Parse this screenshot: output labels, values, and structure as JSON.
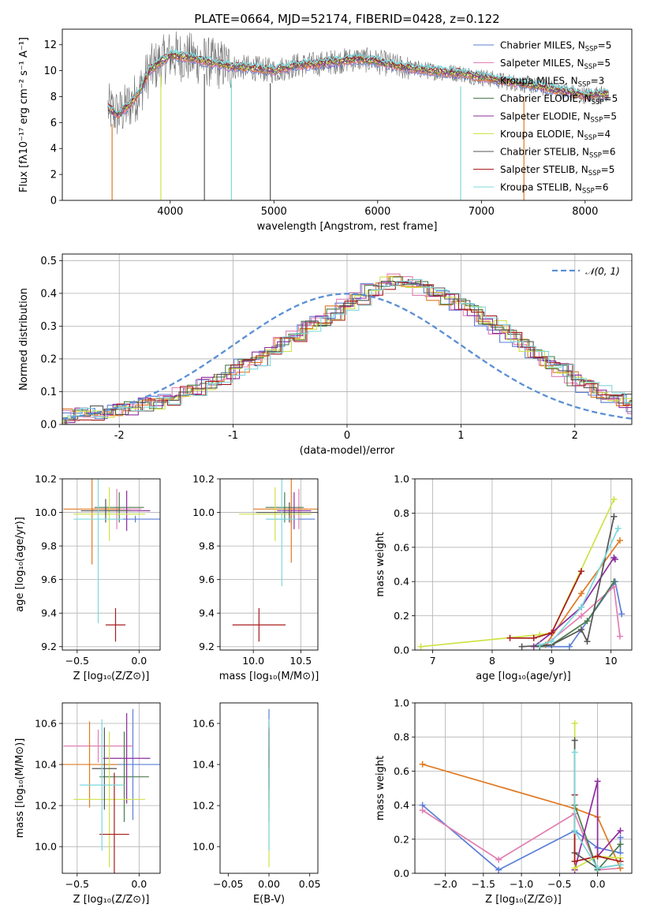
{
  "figure": {
    "title": "PLATE=0664, MJD=52174, FIBERID=0428, z=0.122"
  },
  "colors": {
    "Chabrier MILES": "#5b7fd6",
    "Salpeter MILES": "#e07fb2",
    "Kroupa MILES": "#e07a22",
    "Chabrier ELODIE": "#4a7b4f",
    "Salpeter ELODIE": "#8e2c9e",
    "Kroupa ELODIE": "#cfe246",
    "Chabrier STELIB": "#555555",
    "Salpeter STELIB": "#a81b1b",
    "Kroupa STELIB": "#7dd8dc",
    "normal_fit": "#5b8fd6",
    "grid": "#b0b0b0"
  },
  "chart_data": [
    {
      "id": "spectrum",
      "type": "line",
      "title": "PLATE=0664, MJD=52174, FIBERID=0428, z=0.122",
      "xlabel": "wavelength [Angstrom, rest frame]",
      "ylabel": "Flux [fλ10⁻¹⁷ erg cm⁻² s⁻¹ A⁻¹]",
      "xlim": [
        2960,
        8450
      ],
      "ylim": [
        0,
        13.2
      ],
      "xticks": [
        4000,
        5000,
        6000,
        7000,
        8000
      ],
      "yticks": [
        0,
        2,
        4,
        6,
        8,
        10,
        12
      ],
      "grid": false,
      "legend_position": "top-right",
      "data_envelope": {
        "x": [
          3400,
          3500,
          3600,
          3700,
          3800,
          3900,
          4000,
          4200,
          4400,
          4600,
          4800,
          5000,
          5200,
          5400,
          5600,
          5800,
          6000,
          6200,
          6400,
          6600,
          6800,
          7000,
          7200,
          7400,
          7600,
          7800,
          8000,
          8200
        ],
        "y": [
          7.1,
          6.6,
          7.3,
          8.3,
          10.0,
          10.6,
          11.2,
          11.0,
          10.6,
          10.3,
          10.2,
          10.0,
          10.4,
          10.5,
          10.7,
          10.9,
          10.7,
          10.3,
          10.1,
          9.9,
          9.8,
          9.5,
          9.2,
          9.0,
          8.7,
          8.4,
          8.1,
          8.2
        ]
      },
      "series": [
        {
          "name": "Chabrier MILES, N_SSP=5",
          "label_main": "Chabrier MILES, N",
          "label_sub": "SSP",
          "label_tail": "=5"
        },
        {
          "name": "Salpeter MILES, N_SSP=5",
          "label_main": "Salpeter MILES, N",
          "label_sub": "SSP",
          "label_tail": "=5"
        },
        {
          "name": "Kroupa MILES, N_SSP=3",
          "label_main": "Kroupa MILES, N",
          "label_sub": "SSP",
          "label_tail": "=3"
        },
        {
          "name": "Chabrier ELODIE, N_SSP=5",
          "label_main": "Chabrier ELODIE, N",
          "label_sub": "SSP",
          "label_tail": "=5"
        },
        {
          "name": "Salpeter ELODIE, N_SSP=5",
          "label_main": "Salpeter ELODIE, N",
          "label_sub": "SSP",
          "label_tail": "=5"
        },
        {
          "name": "Kroupa ELODIE, N_SSP=4",
          "label_main": "Kroupa ELODIE, N",
          "label_sub": "SSP",
          "label_tail": "=4"
        },
        {
          "name": "Chabrier STELIB, N_SSP=6",
          "label_main": "Chabrier STELIB, N",
          "label_sub": "SSP",
          "label_tail": "=6"
        },
        {
          "name": "Salpeter STELIB, N_SSP=5",
          "label_main": "Salpeter STELIB, N",
          "label_sub": "SSP",
          "label_tail": "=5"
        },
        {
          "name": "Kroupa STELIB, N_SSP=6",
          "label_main": "Kroupa STELIB, N",
          "label_sub": "SSP",
          "label_tail": "=6"
        }
      ]
    },
    {
      "id": "residuals",
      "type": "histogram",
      "xlabel": "(data-model)/error",
      "ylabel": "Normed distribution",
      "xlim": [
        -2.5,
        2.5
      ],
      "ylim": [
        0,
        0.52
      ],
      "xticks": [
        -2,
        -1,
        0,
        1,
        2
      ],
      "yticks": [
        0.0,
        0.1,
        0.2,
        0.3,
        0.4,
        0.5
      ],
      "grid": true,
      "legend_position": "top-right",
      "bin_width": 0.1111,
      "bin_start": -2.5,
      "bin_heights": [
        0.027,
        0.03,
        0.034,
        0.038,
        0.044,
        0.05,
        0.058,
        0.068,
        0.08,
        0.094,
        0.108,
        0.124,
        0.142,
        0.16,
        0.18,
        0.2,
        0.22,
        0.245,
        0.27,
        0.295,
        0.32,
        0.34,
        0.36,
        0.385,
        0.41,
        0.43,
        0.445,
        0.43,
        0.415,
        0.4,
        0.385,
        0.365,
        0.345,
        0.32,
        0.295,
        0.268,
        0.24,
        0.215,
        0.19,
        0.165,
        0.14,
        0.12,
        0.1,
        0.085,
        0.07,
        0.055,
        0.042
      ],
      "normal_label": "𝒩(0, 1)"
    },
    {
      "id": "age_vs_Z",
      "type": "errorbar",
      "xlabel": "Z [log₁₀(Z/Z⊙)]",
      "ylabel": "age  [log₁₀(age/yr)]",
      "xlim": [
        -0.62,
        0.17
      ],
      "ylim": [
        9.18,
        10.2
      ],
      "xticks": [
        -0.5,
        0.0
      ],
      "yticks": [
        9.2,
        9.4,
        9.6,
        9.8,
        10.0,
        10.2
      ],
      "grid": true,
      "points": [
        {
          "s": "Chabrier MILES",
          "x": -0.03,
          "xerr": 0.2,
          "y": 9.96,
          "yerr": 0.02
        },
        {
          "s": "Salpeter MILES",
          "x": -0.18,
          "xerr": 0.2,
          "y": 10.02,
          "yerr": 0.12
        },
        {
          "s": "Kroupa MILES",
          "x": -0.38,
          "xerr": 0.23,
          "y": 10.02,
          "yerr": 0.33
        },
        {
          "s": "Chabrier ELODIE",
          "x": -0.16,
          "xerr": 0.2,
          "y": 10.03,
          "yerr": 0.09
        },
        {
          "s": "Salpeter ELODIE",
          "x": -0.1,
          "xerr": 0.19,
          "y": 10.01,
          "yerr": 0.12
        },
        {
          "s": "Kroupa ELODIE",
          "x": -0.24,
          "xerr": 0.29,
          "y": 9.99,
          "yerr": 0.16
        },
        {
          "s": "Chabrier STELIB",
          "x": -0.27,
          "xerr": 0.2,
          "y": 10.01,
          "yerr": 0.07
        },
        {
          "s": "Salpeter STELIB",
          "x": -0.19,
          "xerr": 0.08,
          "y": 9.33,
          "yerr": 0.1
        },
        {
          "s": "Kroupa STELIB",
          "x": -0.33,
          "xerr": 0.2,
          "y": 9.96,
          "yerr": 0.62
        }
      ]
    },
    {
      "id": "age_vs_mass",
      "type": "errorbar",
      "xlabel": "mass [log₁₀(M/M⊙)]",
      "ylabel": "",
      "xlim": [
        9.65,
        10.68
      ],
      "ylim": [
        9.18,
        10.2
      ],
      "xticks": [
        10.0,
        10.5
      ],
      "yticks": [
        9.2,
        9.4,
        9.6,
        9.8,
        10.0,
        10.2
      ],
      "grid": true,
      "points": [
        {
          "s": "Chabrier MILES",
          "x": 10.4,
          "xerr": 0.25,
          "y": 9.96,
          "yerr": 0.03
        },
        {
          "s": "Salpeter MILES",
          "x": 10.48,
          "xerr": 0.08,
          "y": 10.02,
          "yerr": 0.12
        },
        {
          "s": "Kroupa MILES",
          "x": 10.4,
          "xerr": 0.4,
          "y": 10.02,
          "yerr": 0.32
        },
        {
          "s": "Chabrier ELODIE",
          "x": 10.33,
          "xerr": 0.2,
          "y": 10.03,
          "yerr": 0.09
        },
        {
          "s": "Salpeter ELODIE",
          "x": 10.43,
          "xerr": 0.18,
          "y": 10.01,
          "yerr": 0.11
        },
        {
          "s": "Kroupa ELODIE",
          "x": 10.23,
          "xerr": 0.38,
          "y": 9.99,
          "yerr": 0.16
        },
        {
          "s": "Chabrier STELIB",
          "x": 10.38,
          "xerr": 0.35,
          "y": 10.0,
          "yerr": 0.06
        },
        {
          "s": "Salpeter STELIB",
          "x": 10.06,
          "xerr": 0.28,
          "y": 9.33,
          "yerr": 0.1
        },
        {
          "s": "Kroupa STELIB",
          "x": 10.3,
          "xerr": 0.17,
          "y": 9.96,
          "yerr": 0.4
        }
      ]
    },
    {
      "id": "weight_vs_age",
      "type": "line",
      "xlabel": "age  [log₁₀(age/yr)]",
      "ylabel": "mass weight",
      "xlim": [
        6.7,
        10.35
      ],
      "ylim": [
        0.0,
        1.0
      ],
      "xticks": [
        7,
        8,
        9,
        10
      ],
      "yticks": [
        0.0,
        0.2,
        0.4,
        0.6,
        0.8,
        1.0
      ],
      "grid": true,
      "series": [
        {
          "s": "Chabrier MILES",
          "x": [
            8.8,
            9.3,
            10.07,
            10.18
          ],
          "y": [
            0.02,
            0.02,
            0.4,
            0.21
          ]
        },
        {
          "s": "Salpeter MILES",
          "x": [
            8.9,
            9.5,
            10.05,
            10.15
          ],
          "y": [
            0.03,
            0.2,
            0.37,
            0.08
          ]
        },
        {
          "s": "Kroupa MILES",
          "x": [
            8.9,
            9.5,
            10.15
          ],
          "y": [
            0.03,
            0.33,
            0.64
          ]
        },
        {
          "s": "Chabrier ELODIE",
          "x": [
            8.8,
            9.0,
            9.6,
            10.05
          ],
          "y": [
            0.02,
            0.03,
            0.17,
            0.4
          ]
        },
        {
          "s": "Salpeter ELODIE",
          "x": [
            8.7,
            9.0,
            9.5,
            10.05,
            10.07
          ],
          "y": [
            0.02,
            0.1,
            0.25,
            0.54,
            0.53
          ]
        },
        {
          "s": "Kroupa ELODIE",
          "x": [
            6.8,
            8.8,
            9.0,
            10.05
          ],
          "y": [
            0.02,
            0.09,
            0.1,
            0.88
          ]
        },
        {
          "s": "Chabrier STELIB",
          "x": [
            8.5,
            9.0,
            9.5,
            9.6,
            10.05
          ],
          "y": [
            0.02,
            0.03,
            0.12,
            0.05,
            0.78
          ]
        },
        {
          "s": "Salpeter STELIB",
          "x": [
            8.3,
            8.7,
            9.0,
            9.5
          ],
          "y": [
            0.07,
            0.07,
            0.1,
            0.46
          ]
        },
        {
          "s": "Kroupa STELIB",
          "x": [
            8.8,
            9.0,
            9.5,
            10.12
          ],
          "y": [
            0.03,
            0.05,
            0.25,
            0.71
          ]
        }
      ]
    },
    {
      "id": "mass_vs_Z",
      "type": "errorbar",
      "xlabel": "Z [log₁₀(Z/Z⊙)]",
      "ylabel": "mass [log₁₀(M/M⊙)]",
      "xlim": [
        -0.62,
        0.17
      ],
      "ylim": [
        9.87,
        10.7
      ],
      "xticks": [
        -0.5,
        0.0
      ],
      "yticks": [
        10.0,
        10.2,
        10.4,
        10.6
      ],
      "grid": true,
      "points": [
        {
          "s": "Chabrier MILES",
          "x": -0.05,
          "xerr": 0.25,
          "y": 10.4,
          "yerr": 0.27
        },
        {
          "s": "Salpeter MILES",
          "x": -0.33,
          "xerr": 0.28,
          "y": 10.49,
          "yerr": 0.08
        },
        {
          "s": "Kroupa MILES",
          "x": -0.4,
          "xerr": 0.23,
          "y": 10.4,
          "yerr": 0.21
        },
        {
          "s": "Chabrier ELODIE",
          "x": -0.12,
          "xerr": 0.2,
          "y": 10.34,
          "yerr": 0.22
        },
        {
          "s": "Salpeter ELODIE",
          "x": -0.1,
          "xerr": 0.19,
          "y": 10.43,
          "yerr": 0.22
        },
        {
          "s": "Kroupa ELODIE",
          "x": -0.24,
          "xerr": 0.29,
          "y": 10.23,
          "yerr": 0.33
        },
        {
          "s": "Chabrier STELIB",
          "x": -0.28,
          "xerr": 0.1,
          "y": 10.38,
          "yerr": 0.2
        },
        {
          "s": "Salpeter STELIB",
          "x": -0.2,
          "xerr": 0.12,
          "y": 10.06,
          "yerr": 0.3
        },
        {
          "s": "Kroupa STELIB",
          "x": -0.3,
          "xerr": 0.18,
          "y": 10.3,
          "yerr": 0.32
        }
      ]
    },
    {
      "id": "mass_vs_EBV",
      "type": "errorbar",
      "xlabel": "E(B-V)",
      "ylabel": "",
      "xlim": [
        -0.06,
        0.06
      ],
      "ylim": [
        9.87,
        10.7
      ],
      "xticks": [
        -0.05,
        0.0,
        0.05
      ],
      "xticklabels": [
        "−0.05",
        "0.00",
        "0.05"
      ],
      "yticks": [
        10.0,
        10.2,
        10.4,
        10.6
      ],
      "grid": false,
      "points": [
        {
          "s": "Chabrier MILES",
          "x": 0.0,
          "xerr": 0.0,
          "y": 10.45,
          "yerr": 0.22
        },
        {
          "s": "Salpeter MILES",
          "x": 0.0,
          "xerr": 0.0,
          "y": 10.49,
          "yerr": 0.08
        },
        {
          "s": "Kroupa MILES",
          "x": 0.0,
          "xerr": 0.0,
          "y": 10.4,
          "yerr": 0.21
        },
        {
          "s": "Chabrier ELODIE",
          "x": 0.0,
          "xerr": 0.0,
          "y": 10.34,
          "yerr": 0.22
        },
        {
          "s": "Salpeter ELODIE",
          "x": 0.0,
          "xerr": 0.0,
          "y": 10.5,
          "yerr": 0.08
        },
        {
          "s": "Kroupa ELODIE",
          "x": 0.0,
          "xerr": 0.0,
          "y": 10.23,
          "yerr": 0.33
        },
        {
          "s": "Chabrier STELIB",
          "x": 0.0,
          "xerr": 0.0,
          "y": 10.38,
          "yerr": 0.1
        },
        {
          "s": "Salpeter STELIB",
          "x": 0.0,
          "xerr": 0.0,
          "y": 10.48,
          "yerr": 0.1
        },
        {
          "s": "Kroupa STELIB",
          "x": 0.0,
          "xerr": 0.0,
          "y": 10.3,
          "yerr": 0.32
        }
      ]
    },
    {
      "id": "weight_vs_Z",
      "type": "line",
      "xlabel": "Z [log₁₀(Z/Z⊙)]",
      "ylabel": "mass weight",
      "xlim": [
        -2.4,
        0.45
      ],
      "ylim": [
        0.0,
        1.0
      ],
      "xticks": [
        -2.0,
        -1.5,
        -1.0,
        -0.5,
        0.0
      ],
      "xticklabels": [
        "−2.0",
        "−1.5",
        "−1.0",
        "−0.5",
        "0.0"
      ],
      "yticks": [
        0.0,
        0.2,
        0.4,
        0.6,
        0.8,
        1.0
      ],
      "grid": true,
      "series": [
        {
          "s": "Chabrier MILES",
          "x": [
            -2.3,
            -1.3,
            -0.3,
            0.0,
            0.3,
            0.3
          ],
          "y": [
            0.4,
            0.02,
            0.25,
            0.15,
            0.12,
            0.21
          ]
        },
        {
          "s": "Salpeter MILES",
          "x": [
            -2.3,
            -1.3,
            -0.3,
            0.0,
            0.3
          ],
          "y": [
            0.37,
            0.08,
            0.35,
            0.02,
            0.03
          ]
        },
        {
          "s": "Kroupa MILES",
          "x": [
            -2.3,
            -0.3,
            0.0,
            0.3
          ],
          "y": [
            0.64,
            0.38,
            0.33,
            0.03
          ]
        },
        {
          "s": "Chabrier ELODIE",
          "x": [
            -0.3,
            0.0,
            0.3
          ],
          "y": [
            0.4,
            0.02,
            0.17
          ]
        },
        {
          "s": "Salpeter ELODIE",
          "x": [
            -0.3,
            0.0,
            0.0,
            0.3
          ],
          "y": [
            0.02,
            0.54,
            0.1,
            0.25
          ]
        },
        {
          "s": "Kroupa ELODIE",
          "x": [
            -0.3,
            -0.3,
            0.0,
            0.3
          ],
          "y": [
            0.88,
            0.03,
            0.1,
            0.09
          ]
        },
        {
          "s": "Chabrier STELIB",
          "x": [
            -0.3,
            -0.3,
            0.0,
            0.3
          ],
          "y": [
            0.78,
            0.12,
            0.03,
            0.05
          ]
        },
        {
          "s": "Salpeter STELIB",
          "x": [
            -0.3,
            -0.3,
            0.0,
            0.3
          ],
          "y": [
            0.46,
            0.07,
            0.1,
            0.07
          ]
        },
        {
          "s": "Kroupa STELIB",
          "x": [
            -0.3,
            -0.3,
            0.0,
            0.3
          ],
          "y": [
            0.71,
            0.25,
            0.03,
            0.05
          ]
        }
      ]
    }
  ]
}
